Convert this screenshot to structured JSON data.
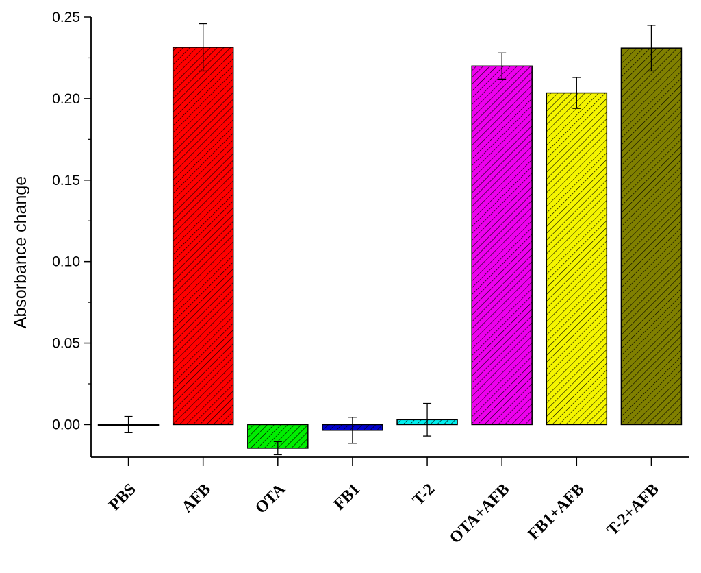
{
  "chart_data": {
    "type": "bar",
    "title": "",
    "xlabel": "",
    "ylabel": "Absorbance change",
    "ylim": [
      -0.02,
      0.25
    ],
    "yticks": [
      "0.00",
      "0.05",
      "0.10",
      "0.15",
      "0.20",
      "0.25"
    ],
    "grid": false,
    "pattern": "diagonal-hatch",
    "categories": [
      "PBS",
      "AFB",
      "OTA",
      "FB1",
      "T-2",
      "OTA+AFB",
      "FB1+AFB",
      "T-2+AFB"
    ],
    "values": [
      0.0,
      0.2315,
      -0.0145,
      -0.0035,
      0.003,
      0.22,
      0.2035,
      0.231
    ],
    "errors": [
      0.005,
      0.0145,
      0.004,
      0.008,
      0.01,
      0.008,
      0.0095,
      0.014
    ],
    "colors": [
      "#000000",
      "#ff0000",
      "#00ee00",
      "#0000cc",
      "#00eeee",
      "#ee00ee",
      "#f5f500",
      "#808000"
    ]
  }
}
